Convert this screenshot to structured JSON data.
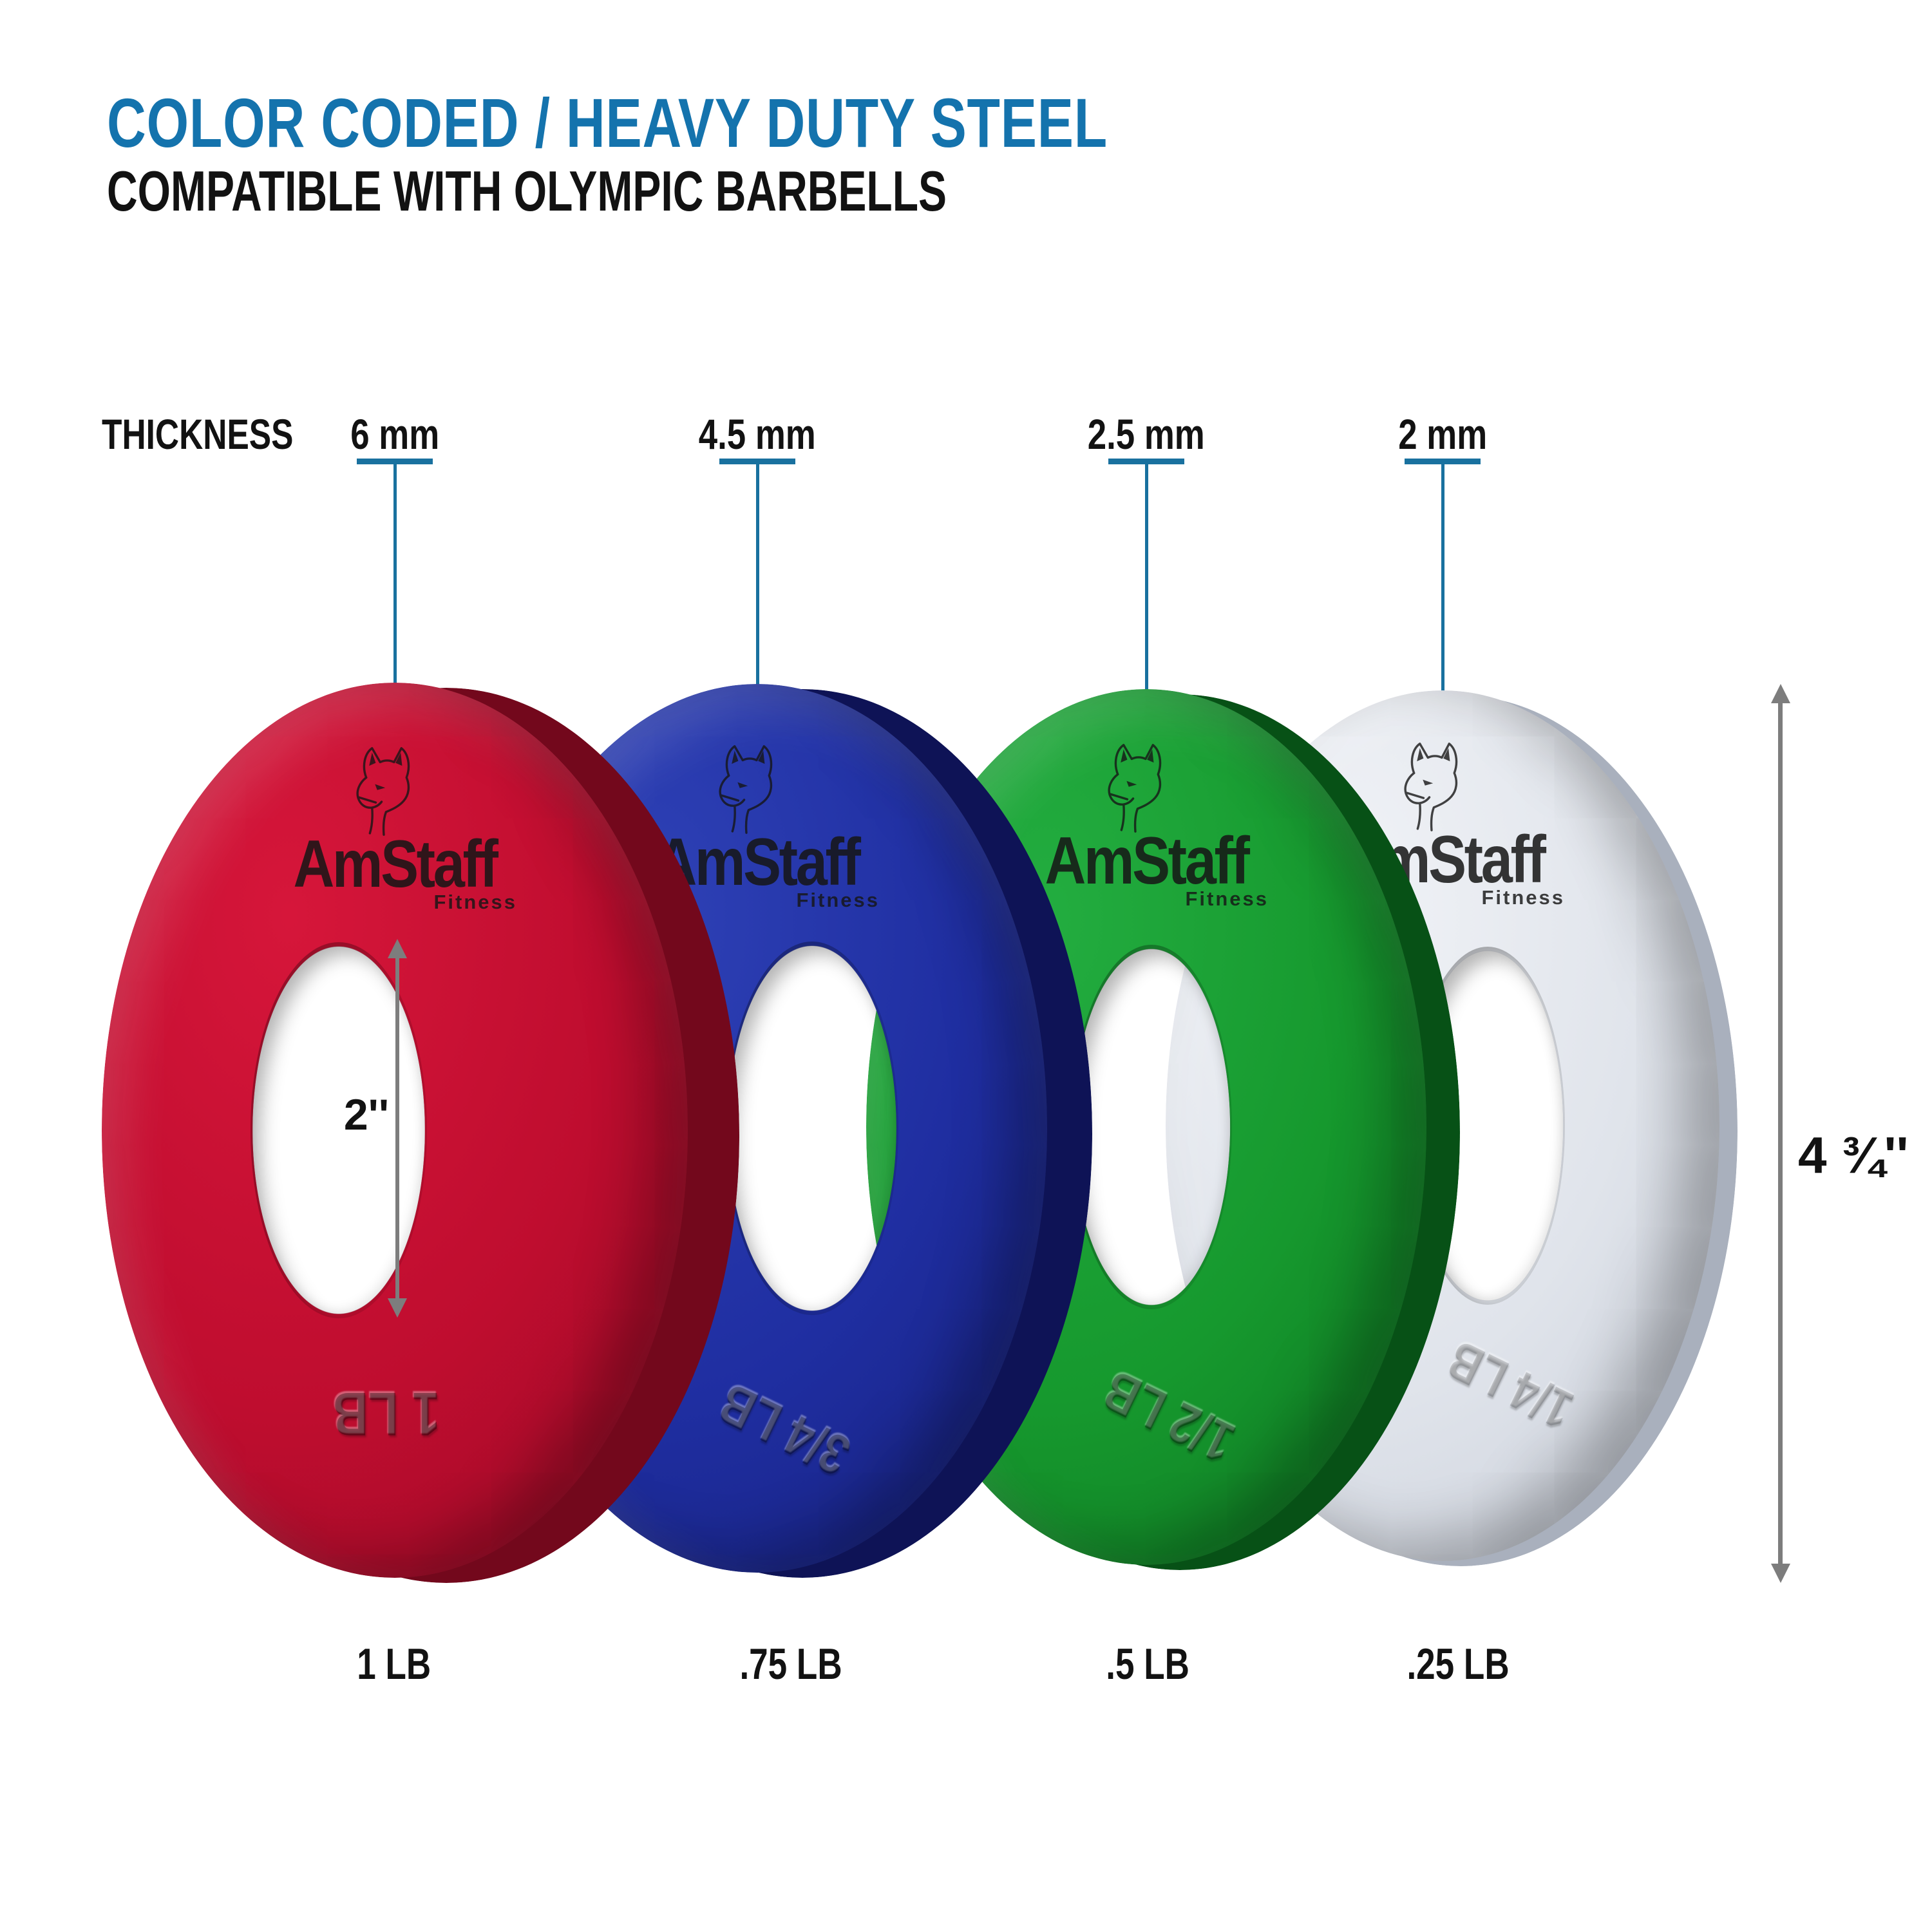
{
  "header": {
    "title": "COLOR CODED / HEAVY DUTY STEEL",
    "subtitle": "COMPATIBLE WITH OLYMPIC BARBELLS"
  },
  "thickness": {
    "label": "THICKNESS",
    "values": [
      "6 mm",
      "4.5 mm",
      "2.5 mm",
      "2 mm"
    ]
  },
  "brand": {
    "name": "AmStaff",
    "sub": "Fitness"
  },
  "plates": [
    {
      "color_name": "red",
      "weight_label": "1 LB",
      "engraved": "1 LB",
      "colors": {
        "light": "#d6163a",
        "base": "#bf0d2f",
        "dark": "#8c0a23",
        "rim": "#73081c"
      }
    },
    {
      "color_name": "blue",
      "weight_label": ".75 LB",
      "engraved": "3/4 LB",
      "colors": {
        "light": "#2e41b6",
        "base": "#1f2ea1",
        "dark": "#131b6e",
        "rim": "#0e1356"
      }
    },
    {
      "color_name": "green",
      "weight_label": ".5 LB",
      "engraved": "1/2 LB",
      "colors": {
        "light": "#23ad40",
        "base": "#16992e",
        "dark": "#0c691d",
        "rim": "#075116"
      }
    },
    {
      "color_name": "white",
      "weight_label": ".25 LB",
      "engraved": "1/4 LB",
      "colors": {
        "light": "#f1f3f7",
        "base": "#e0e4eb",
        "dark": "#bfc5d1",
        "rim": "#a9b0bd"
      }
    }
  ],
  "measurements": {
    "inner_diameter": "2''",
    "outer_diameter": "4 ¾''"
  },
  "palette": {
    "title_blue": "#1473ad",
    "line_teal": "#19719f",
    "arrow_gray": "#7d7d7d",
    "ink": "#121212"
  }
}
